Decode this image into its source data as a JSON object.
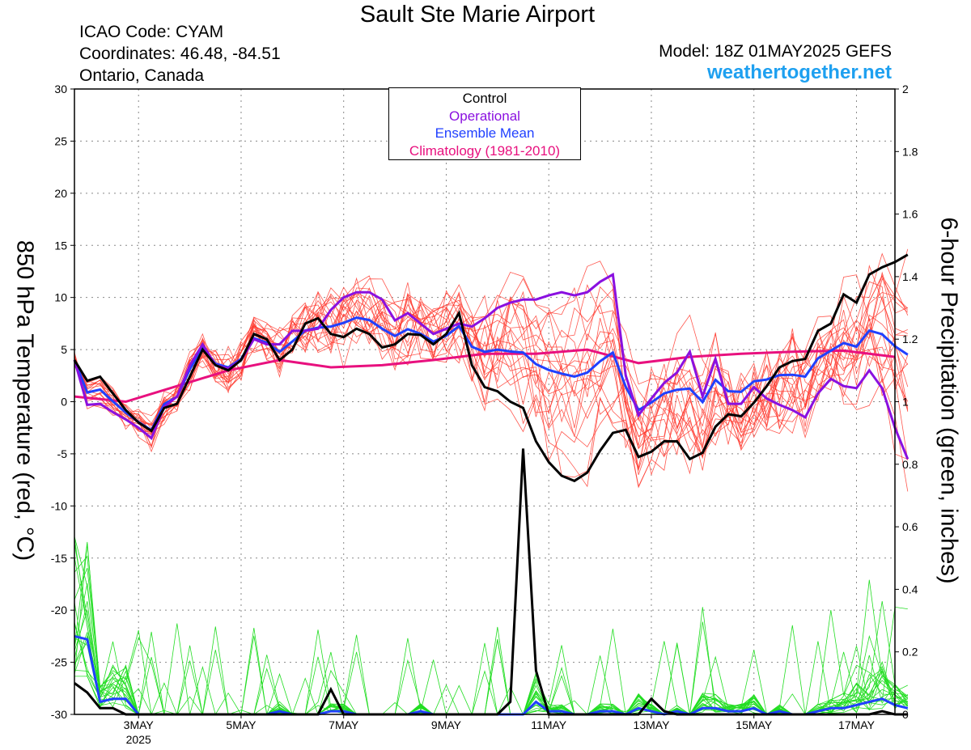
{
  "header": {
    "title": "Sault Ste Marie Airport",
    "icao": "ICAO Code: CYAM",
    "coords": "Coordinates: 46.48, -84.51",
    "region": "Ontario, Canada",
    "model": "Model: 18Z 01MAY2025 GEFS",
    "site": "weathertogether.net"
  },
  "chart_data": {
    "type": "line",
    "ylabel_left": "850 hPa Temperature (red, °C)",
    "ylabel_right": "6-hour Precipitation (green, inches)",
    "y_left_range": [
      -30,
      30
    ],
    "y_left_ticks": [
      "30",
      "25",
      "20",
      "15",
      "10",
      "5",
      "0",
      "-5",
      "-10",
      "-15",
      "-20",
      "-25",
      "-30"
    ],
    "y_right_range": [
      0,
      2
    ],
    "y_right_ticks": [
      "2",
      "1.8",
      "1.6",
      "1.4",
      "1.2",
      "1",
      "0.8",
      "0.6",
      "0.4",
      "0.2",
      "0"
    ],
    "x_range_days": [
      1.75,
      17.75
    ],
    "x_ticks": [
      {
        "day": 3,
        "label": "3MAY",
        "sub": "2025"
      },
      {
        "day": 5,
        "label": "5MAY",
        "sub": ""
      },
      {
        "day": 7,
        "label": "7MAY",
        "sub": ""
      },
      {
        "day": 9,
        "label": "9MAY",
        "sub": ""
      },
      {
        "day": 11,
        "label": "11MAY",
        "sub": ""
      },
      {
        "day": 13,
        "label": "13MAY",
        "sub": ""
      },
      {
        "day": 15,
        "label": "15MAY",
        "sub": ""
      },
      {
        "day": 17,
        "label": "17MAY",
        "sub": ""
      }
    ],
    "grid": true,
    "legend_position": "top-center",
    "legend": [
      {
        "name": "Control",
        "color": "#000000"
      },
      {
        "name": "Operational",
        "color": "#8a10e0"
      },
      {
        "name": "Ensemble Mean",
        "color": "#2040ff"
      },
      {
        "name": "Climatology (1981-2010)",
        "color": "#e8107e"
      }
    ],
    "colors": {
      "members_temp": "#ff3b30",
      "members_precip": "#22dd22"
    },
    "series_temperature": {
      "control": [
        4.0,
        2.0,
        2.4,
        0.8,
        -0.8,
        -2.0,
        -2.8,
        -0.6,
        -0.2,
        2.4,
        5.0,
        3.5,
        3.0,
        4.0,
        6.5,
        6.0,
        4.0,
        5.0,
        7.5,
        8.0,
        6.5,
        6.2,
        7.0,
        6.5,
        5.2,
        5.5,
        6.5,
        6.4,
        5.5,
        6.5,
        8.5,
        3.5,
        1.4,
        1.0,
        0.0,
        -0.6,
        -3.8,
        -5.8,
        -7.1,
        -7.6,
        -6.8,
        -4.7,
        -3.0,
        -2.7,
        -5.3,
        -4.8,
        -3.8,
        -3.8,
        -5.5,
        -4.9,
        -2.4,
        -1.2,
        -1.4,
        -0.1,
        1.5,
        3.3,
        3.9,
        4.1,
        6.8,
        7.5,
        10.3,
        9.5,
        12.2,
        12.9,
        13.4,
        14.1
      ],
      "operational": [
        4.0,
        -0.3,
        -0.2,
        -1.0,
        -1.7,
        -2.5,
        -3.5,
        -0.5,
        0.5,
        3.5,
        5.5,
        3.5,
        3.2,
        4.0,
        6.0,
        5.5,
        5.5,
        6.8,
        6.8,
        7.0,
        8.8,
        10.0,
        10.5,
        10.5,
        9.8,
        7.8,
        8.5,
        7.5,
        6.5,
        7.0,
        7.5,
        7.2,
        8.0,
        9.0,
        9.5,
        9.8,
        9.8,
        10.2,
        10.5,
        10.2,
        10.5,
        11.5,
        12.2,
        2.5,
        -1.3,
        0.3,
        1.8,
        2.8,
        4.8,
        0.5,
        4.1,
        -0.2,
        -0.2,
        1.4,
        0.3,
        -0.3,
        -0.8,
        -1.5,
        0.8,
        2.2,
        1.5,
        1.3,
        3.0,
        1.3,
        -2.5,
        -5.5
      ]
    },
    "series_precip": {
      "control": [
        0.1,
        0.07,
        0.02,
        0.02,
        0.0,
        0.0,
        0.0,
        0.0,
        0.0,
        0.0,
        0.0,
        0.0,
        0.0,
        0.0,
        0.0,
        0.0,
        0.0,
        0.0,
        0.0,
        0.0,
        0.08,
        0.0,
        0.0,
        0.0,
        0.0,
        0.0,
        0.0,
        0.0,
        0.0,
        0.0,
        0.0,
        0.0,
        0.0,
        0.0,
        0.04,
        0.85,
        0.14,
        0.0,
        0.0,
        0.0,
        0.0,
        0.0,
        0.0,
        0.0,
        0.0,
        0.05,
        0.01,
        0.0,
        0.0,
        0.0,
        0.0,
        0.0,
        0.0,
        0.0,
        0.0,
        0.0,
        0.0,
        0.0,
        0.0,
        0.0,
        0.0,
        0.0,
        0.0,
        0.01,
        0.0,
        0.0
      ],
      "ensemble_mean": [
        0.25,
        0.24,
        0.04,
        0.05,
        0.05,
        0.0,
        0.0,
        0.0,
        0.0,
        0.0,
        0.0,
        0.0,
        0.0,
        0.0,
        0.0,
        0.0,
        0.01,
        0.0,
        0.0,
        0.0,
        0.01,
        0.01,
        0.0,
        0.0,
        0.0,
        0.0,
        0.0,
        0.01,
        0.0,
        0.0,
        0.0,
        0.0,
        0.0,
        0.0,
        0.0,
        0.0,
        0.04,
        0.01,
        0.01,
        0.0,
        0.0,
        0.01,
        0.01,
        0.0,
        0.02,
        0.01,
        0.0,
        0.01,
        0.0,
        0.02,
        0.02,
        0.01,
        0.01,
        0.02,
        0.0,
        0.01,
        0.0,
        0.0,
        0.01,
        0.02,
        0.02,
        0.03,
        0.04,
        0.05,
        0.03,
        0.02
      ]
    },
    "climatology": [
      {
        "day": 1.75,
        "value": 0.5
      },
      {
        "day": 2.75,
        "value": 0.0
      },
      {
        "day": 3.75,
        "value": 1.5
      },
      {
        "day": 4.75,
        "value": 3.0
      },
      {
        "day": 5.75,
        "value": 4.0
      },
      {
        "day": 6.75,
        "value": 3.3
      },
      {
        "day": 7.75,
        "value": 3.5
      },
      {
        "day": 8.75,
        "value": 4.0
      },
      {
        "day": 9.75,
        "value": 4.6
      },
      {
        "day": 10.75,
        "value": 4.6
      },
      {
        "day": 11.75,
        "value": 5.0
      },
      {
        "day": 12.75,
        "value": 3.7
      },
      {
        "day": 13.75,
        "value": 4.3
      },
      {
        "day": 14.75,
        "value": 4.6
      },
      {
        "day": 15.75,
        "value": 4.8
      },
      {
        "day": 16.75,
        "value": 4.9
      },
      {
        "day": 17.75,
        "value": 4.3
      }
    ]
  }
}
